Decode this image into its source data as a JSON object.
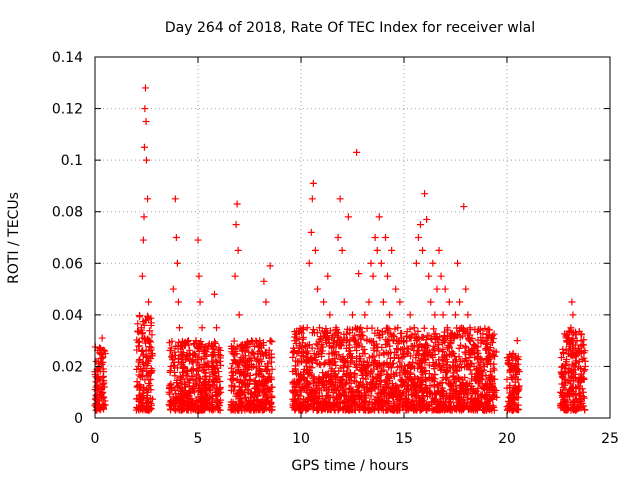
{
  "chart_data": {
    "type": "scatter",
    "title": "Day 264 of 2018, Rate Of TEC Index for receiver wlal",
    "xlabel": "GPS time / hours",
    "ylabel": "ROTI / TECUs",
    "xlim": [
      0,
      25
    ],
    "ylim": [
      0,
      0.14
    ],
    "x_ticks": [
      0,
      5,
      10,
      15,
      20,
      25
    ],
    "x_tick_labels": [
      "0",
      "5",
      "10",
      "15",
      "20",
      "25"
    ],
    "y_ticks": [
      0,
      0.02,
      0.04,
      0.06,
      0.08,
      0.1,
      0.12,
      0.14
    ],
    "y_tick_labels": [
      "0",
      "0.02",
      "0.04",
      "0.06",
      "0.08",
      "0.1",
      "0.12",
      "0.14"
    ],
    "grid": true,
    "marker": "+",
    "marker_color": "#ff0000",
    "series": [
      {
        "name": "ROTI",
        "points": [
          [
            0.0,
            0.018
          ],
          [
            0.05,
            0.012
          ],
          [
            0.1,
            0.008
          ],
          [
            0.15,
            0.022
          ],
          [
            0.2,
            0.015
          ],
          [
            0.25,
            0.027
          ],
          [
            0.3,
            0.009
          ],
          [
            0.35,
            0.031
          ],
          [
            0.4,
            0.019
          ],
          [
            0.45,
            0.012
          ],
          [
            0.5,
            0.025
          ],
          [
            2.05,
            0.012
          ],
          [
            2.1,
            0.02
          ],
          [
            2.15,
            0.028
          ],
          [
            2.2,
            0.016
          ],
          [
            2.25,
            0.035
          ],
          [
            2.3,
            0.055
          ],
          [
            2.35,
            0.069
          ],
          [
            2.38,
            0.078
          ],
          [
            2.4,
            0.105
          ],
          [
            2.42,
            0.12
          ],
          [
            2.45,
            0.128
          ],
          [
            2.48,
            0.115
          ],
          [
            2.5,
            0.1
          ],
          [
            2.55,
            0.085
          ],
          [
            2.6,
            0.045
          ],
          [
            2.65,
            0.03
          ],
          [
            2.7,
            0.015
          ],
          [
            2.75,
            0.025
          ],
          [
            3.6,
            0.01
          ],
          [
            3.7,
            0.02
          ],
          [
            3.8,
            0.05
          ],
          [
            3.9,
            0.085
          ],
          [
            3.95,
            0.07
          ],
          [
            4.0,
            0.06
          ],
          [
            4.05,
            0.045
          ],
          [
            4.1,
            0.035
          ],
          [
            4.2,
            0.028
          ],
          [
            4.3,
            0.02
          ],
          [
            4.4,
            0.012
          ],
          [
            4.5,
            0.018
          ],
          [
            4.6,
            0.01
          ],
          [
            4.7,
            0.022
          ],
          [
            4.8,
            0.015
          ],
          [
            4.9,
            0.03
          ],
          [
            5.0,
            0.069
          ],
          [
            5.05,
            0.055
          ],
          [
            5.1,
            0.045
          ],
          [
            5.2,
            0.035
          ],
          [
            5.3,
            0.025
          ],
          [
            5.4,
            0.015
          ],
          [
            5.5,
            0.028
          ],
          [
            5.6,
            0.012
          ],
          [
            5.7,
            0.02
          ],
          [
            5.8,
            0.048
          ],
          [
            5.9,
            0.035
          ],
          [
            6.0,
            0.018
          ],
          [
            6.1,
            0.01
          ],
          [
            6.6,
            0.015
          ],
          [
            6.7,
            0.025
          ],
          [
            6.8,
            0.055
          ],
          [
            6.85,
            0.075
          ],
          [
            6.9,
            0.083
          ],
          [
            6.95,
            0.065
          ],
          [
            7.0,
            0.04
          ],
          [
            7.1,
            0.028
          ],
          [
            7.2,
            0.018
          ],
          [
            7.3,
            0.012
          ],
          [
            7.4,
            0.022
          ],
          [
            7.5,
            0.015
          ],
          [
            7.6,
            0.03
          ],
          [
            7.7,
            0.02
          ],
          [
            7.8,
            0.012
          ],
          [
            7.9,
            0.025
          ],
          [
            8.0,
            0.03
          ],
          [
            8.1,
            0.018
          ],
          [
            8.2,
            0.053
          ],
          [
            8.3,
            0.045
          ],
          [
            8.4,
            0.02
          ],
          [
            8.5,
            0.059
          ],
          [
            8.6,
            0.012
          ],
          [
            9.6,
            0.018
          ],
          [
            9.7,
            0.03
          ],
          [
            9.8,
            0.025
          ],
          [
            9.9,
            0.015
          ],
          [
            10.0,
            0.022
          ],
          [
            10.1,
            0.012
          ],
          [
            10.2,
            0.028
          ],
          [
            10.3,
            0.035
          ],
          [
            10.4,
            0.06
          ],
          [
            10.5,
            0.072
          ],
          [
            10.55,
            0.085
          ],
          [
            10.6,
            0.091
          ],
          [
            10.7,
            0.065
          ],
          [
            10.8,
            0.05
          ],
          [
            10.9,
            0.035
          ],
          [
            11.0,
            0.025
          ],
          [
            11.1,
            0.045
          ],
          [
            11.2,
            0.03
          ],
          [
            11.3,
            0.055
          ],
          [
            11.4,
            0.04
          ],
          [
            11.5,
            0.025
          ],
          [
            11.6,
            0.018
          ],
          [
            11.7,
            0.035
          ],
          [
            11.8,
            0.07
          ],
          [
            11.9,
            0.085
          ],
          [
            12.0,
            0.065
          ],
          [
            12.1,
            0.045
          ],
          [
            12.2,
            0.03
          ],
          [
            12.3,
            0.078
          ],
          [
            12.4,
            0.025
          ],
          [
            12.5,
            0.04
          ],
          [
            12.6,
            0.03
          ],
          [
            12.7,
            0.103
          ],
          [
            12.8,
            0.056
          ],
          [
            12.9,
            0.035
          ],
          [
            13.0,
            0.025
          ],
          [
            13.1,
            0.04
          ],
          [
            13.2,
            0.03
          ],
          [
            13.3,
            0.045
          ],
          [
            13.4,
            0.06
          ],
          [
            13.5,
            0.055
          ],
          [
            13.6,
            0.07
          ],
          [
            13.7,
            0.065
          ],
          [
            13.8,
            0.078
          ],
          [
            13.9,
            0.06
          ],
          [
            14.0,
            0.045
          ],
          [
            14.1,
            0.07
          ],
          [
            14.2,
            0.055
          ],
          [
            14.3,
            0.04
          ],
          [
            14.4,
            0.065
          ],
          [
            14.5,
            0.03
          ],
          [
            14.6,
            0.05
          ],
          [
            14.7,
            0.035
          ],
          [
            14.8,
            0.045
          ],
          [
            14.9,
            0.02
          ],
          [
            15.0,
            0.03
          ],
          [
            15.1,
            0.015
          ],
          [
            15.2,
            0.025
          ],
          [
            15.3,
            0.04
          ],
          [
            15.4,
            0.02
          ],
          [
            15.5,
            0.035
          ],
          [
            15.6,
            0.06
          ],
          [
            15.7,
            0.07
          ],
          [
            15.8,
            0.075
          ],
          [
            15.9,
            0.065
          ],
          [
            16.0,
            0.087
          ],
          [
            16.1,
            0.077
          ],
          [
            16.2,
            0.055
          ],
          [
            16.3,
            0.045
          ],
          [
            16.4,
            0.06
          ],
          [
            16.5,
            0.04
          ],
          [
            16.6,
            0.05
          ],
          [
            16.7,
            0.065
          ],
          [
            16.8,
            0.055
          ],
          [
            16.9,
            0.04
          ],
          [
            17.0,
            0.05
          ],
          [
            17.1,
            0.035
          ],
          [
            17.2,
            0.045
          ],
          [
            17.3,
            0.03
          ],
          [
            17.4,
            0.025
          ],
          [
            17.5,
            0.04
          ],
          [
            17.6,
            0.06
          ],
          [
            17.7,
            0.045
          ],
          [
            17.8,
            0.035
          ],
          [
            17.9,
            0.082
          ],
          [
            18.0,
            0.05
          ],
          [
            18.1,
            0.04
          ],
          [
            18.2,
            0.035
          ],
          [
            18.3,
            0.025
          ],
          [
            18.4,
            0.02
          ],
          [
            18.5,
            0.015
          ],
          [
            18.6,
            0.025
          ],
          [
            18.7,
            0.018
          ],
          [
            18.8,
            0.03
          ],
          [
            18.9,
            0.02
          ],
          [
            19.0,
            0.012
          ],
          [
            19.1,
            0.025
          ],
          [
            19.2,
            0.018
          ],
          [
            19.3,
            0.01
          ],
          [
            19.4,
            0.015
          ],
          [
            19.5,
            0.008
          ],
          [
            20.0,
            0.015
          ],
          [
            20.1,
            0.008
          ],
          [
            20.2,
            0.02
          ],
          [
            20.3,
            0.025
          ],
          [
            20.4,
            0.012
          ],
          [
            20.5,
            0.03
          ],
          [
            20.6,
            0.018
          ],
          [
            22.6,
            0.01
          ],
          [
            22.7,
            0.02
          ],
          [
            22.8,
            0.015
          ],
          [
            22.9,
            0.03
          ],
          [
            23.0,
            0.025
          ],
          [
            23.1,
            0.035
          ],
          [
            23.15,
            0.045
          ],
          [
            23.2,
            0.04
          ],
          [
            23.3,
            0.02
          ],
          [
            23.4,
            0.03
          ],
          [
            23.5,
            0.015
          ],
          [
            23.6,
            0.025
          ],
          [
            23.7,
            0.01
          ],
          [
            23.8,
            0.02
          ]
        ]
      }
    ],
    "dense_clusters": [
      {
        "x_range": [
          0.0,
          0.5
        ],
        "y_max": 0.028
      },
      {
        "x_range": [
          2.0,
          2.8
        ],
        "y_max": 0.04
      },
      {
        "x_range": [
          3.6,
          6.1
        ],
        "y_max": 0.03
      },
      {
        "x_range": [
          6.6,
          8.6
        ],
        "y_max": 0.03
      },
      {
        "x_range": [
          9.6,
          19.5
        ],
        "y_max": 0.035
      },
      {
        "x_range": [
          20.0,
          20.6
        ],
        "y_max": 0.025
      },
      {
        "x_range": [
          22.6,
          23.8
        ],
        "y_max": 0.035
      }
    ]
  }
}
